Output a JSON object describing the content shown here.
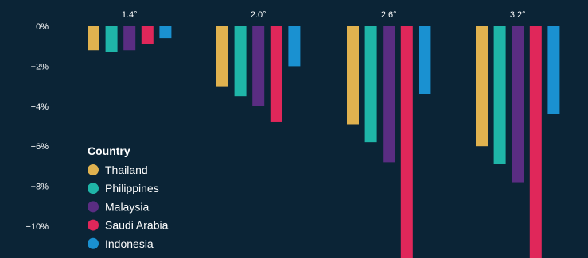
{
  "chart_data": {
    "type": "bar",
    "categories": [
      "1.4°",
      "2.0°",
      "2.6°",
      "3.2°"
    ],
    "series": [
      {
        "name": "Thailand",
        "color": "#e0b24f",
        "values": [
          -1.2,
          -3.0,
          -4.9,
          -6.0
        ]
      },
      {
        "name": "Philippines",
        "color": "#1fb5a8",
        "values": [
          -1.3,
          -3.5,
          -5.8,
          -6.9
        ]
      },
      {
        "name": "Malaysia",
        "color": "#5a2d82",
        "values": [
          -1.2,
          -4.0,
          -6.8,
          -7.8
        ]
      },
      {
        "name": "Saudi Arabia",
        "color": "#e0275a",
        "values": [
          -0.9,
          -4.8,
          -11.7,
          -11.7
        ]
      },
      {
        "name": "Indonesia",
        "color": "#1a91d1",
        "values": [
          -0.6,
          -2.0,
          -3.4,
          -4.4
        ]
      }
    ],
    "y_ticks": [
      {
        "value": 0,
        "label": "0%"
      },
      {
        "value": -2,
        "label": "−2%"
      },
      {
        "value": -4,
        "label": "−4%"
      },
      {
        "value": -6,
        "label": "−6%"
      },
      {
        "value": -8,
        "label": "−8%"
      },
      {
        "value": -10,
        "label": "−10%"
      }
    ],
    "ylim": [
      -11.7,
      0
    ],
    "legend": {
      "title": "Country",
      "placement": "bottom-left"
    },
    "grid": false,
    "background": "#0b2436"
  }
}
